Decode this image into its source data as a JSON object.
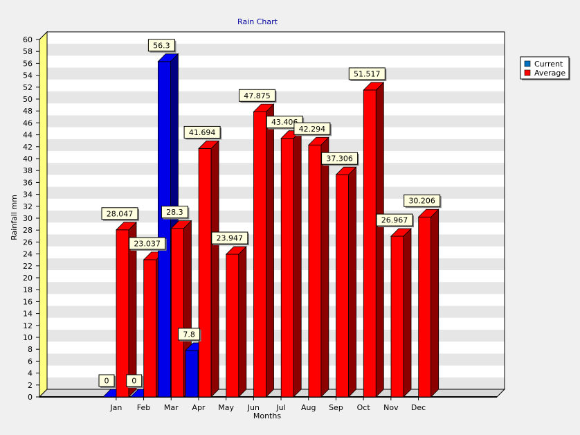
{
  "chart_data": {
    "type": "bar",
    "title": "Rain Chart",
    "xlabel": "Months",
    "ylabel": "Rainfall mm",
    "ylim": [
      0,
      60
    ],
    "ytick_step": 2,
    "categories": [
      "Jan",
      "Feb",
      "Mar",
      "Apr",
      "May",
      "Jun",
      "Jul",
      "Aug",
      "Sep",
      "Oct",
      "Nov",
      "Dec"
    ],
    "series": [
      {
        "name": "Current",
        "color": "#0000e8",
        "values": [
          0,
          0,
          56.3,
          7.8,
          null,
          null,
          null,
          null,
          null,
          null,
          null,
          null
        ],
        "labels": [
          "0",
          "0",
          "56.3",
          "7.8",
          null,
          null,
          null,
          null,
          null,
          null,
          null,
          null
        ]
      },
      {
        "name": "Average",
        "color": "#ff0000",
        "values": [
          28.047,
          23.037,
          28.3,
          41.694,
          23.947,
          47.875,
          43.406,
          42.294,
          37.306,
          51.517,
          26.967,
          30.206
        ],
        "labels": [
          "28.047",
          "23.037",
          "28.3",
          "41.694",
          "23.947",
          "47.875",
          "43.406",
          "42.294",
          "37.306",
          "51.517",
          "26.967",
          "30.206"
        ]
      }
    ],
    "grid": true,
    "legend_position": "top-right",
    "colors": {
      "background": "#f0f0f0",
      "stripe_light": "#ffffff",
      "stripe_dark": "#e6e6e6",
      "left_wall": "#ffff80",
      "label_box": "#ffffe0",
      "title": "#0000a0"
    }
  }
}
